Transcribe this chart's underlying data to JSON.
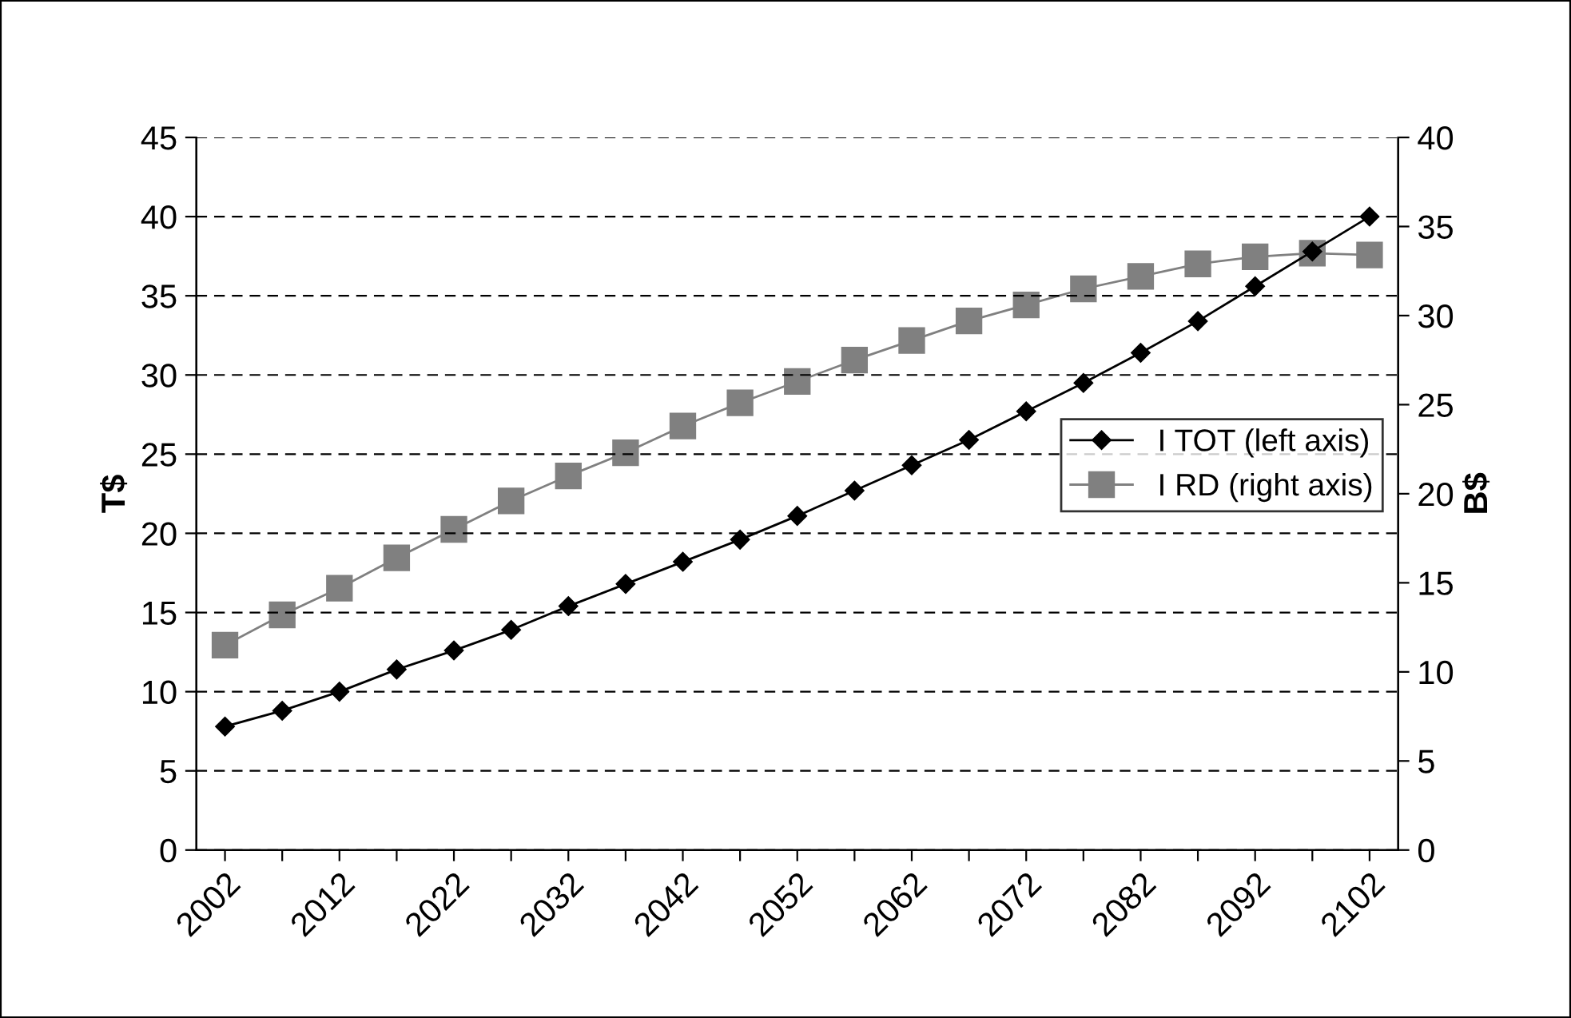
{
  "chart_data": {
    "type": "line",
    "ylabel": "T$",
    "y2label": "B$",
    "categories": [
      "2002",
      null,
      "2012",
      null,
      "2022",
      null,
      "2032",
      null,
      "2042",
      null,
      "2052",
      null,
      "2062",
      null,
      "2072",
      null,
      "2082",
      null,
      "2092",
      null,
      "2102"
    ],
    "series": [
      {
        "name": "I TOT (left axis)",
        "color": "#000000",
        "marker": "diamond",
        "values": [
          7.8,
          8.8,
          10.0,
          11.4,
          12.6,
          13.9,
          15.4,
          16.8,
          18.2,
          19.6,
          21.1,
          22.7,
          24.3,
          25.9,
          27.7,
          29.5,
          31.4,
          33.4,
          35.6,
          37.8,
          40.0
        ]
      },
      {
        "name": "I RD (right axis)",
        "color": "#808080",
        "marker": "square",
        "axis": "y2",
        "values": [
          11.5,
          13.2,
          14.7,
          16.4,
          18.0,
          19.6,
          21.0,
          22.3,
          23.8,
          25.1,
          26.3,
          27.5,
          28.6,
          29.7,
          30.6,
          31.5,
          32.2,
          32.9,
          33.3,
          33.5,
          33.4
        ]
      }
    ],
    "ylim": [
      0,
      45
    ],
    "yticks": [
      0,
      5,
      10,
      15,
      20,
      25,
      30,
      35,
      40,
      45
    ],
    "y2lim": [
      0,
      40
    ],
    "y2ticks": [
      0,
      5,
      10,
      15,
      20,
      25,
      30,
      35,
      40
    ],
    "grid": "y",
    "legend": "center right",
    "line_style": "solid"
  }
}
